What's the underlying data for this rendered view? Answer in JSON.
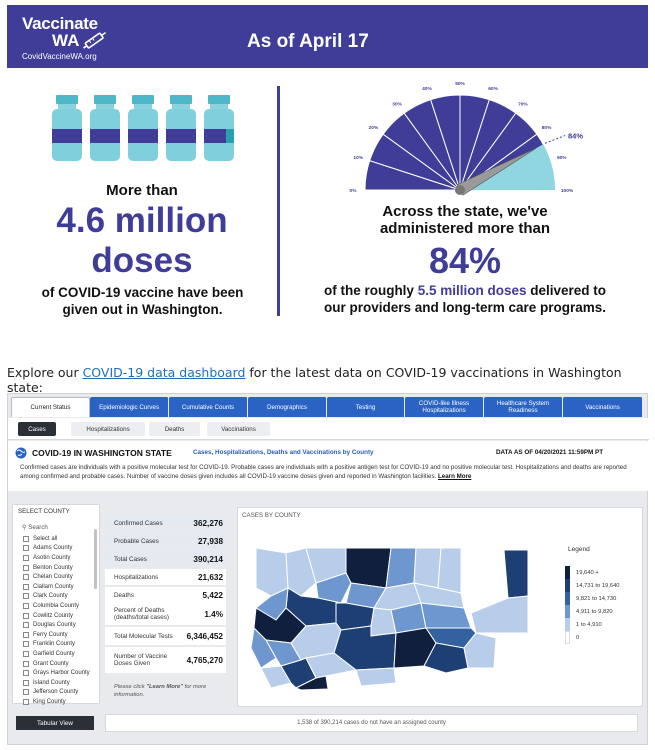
{
  "banner": {
    "logo_line1": "Vaccinate",
    "logo_line2": "WA",
    "logo_url_text": "CovidVaccineWA.org",
    "date_text": "As of April 17",
    "bg_color": "#3f3d97"
  },
  "doses": {
    "intro": "More than",
    "amount_line1": "4.6 million",
    "amount_line2": "doses",
    "caption_line1": "of COVID-19 vaccine have been",
    "caption_line2": "given out in Washington."
  },
  "gauge": {
    "ticks": [
      "0%",
      "10%",
      "20%",
      "30%",
      "40%",
      "50%",
      "60%",
      "70%",
      "80%",
      "90%",
      "100%"
    ],
    "marker_label": "84%",
    "value_percent": 84
  },
  "administered": {
    "line1": "Across the state, we've",
    "line2": "administered more than",
    "percent": "84%",
    "caption_pre": "of the roughly ",
    "caption_highlight": "5.5 million doses",
    "caption_post": " delivered to",
    "caption_line2": "our providers and long-term care programs."
  },
  "explore": {
    "prefix": "Explore our ",
    "link": "COVID-19 data dashboard",
    "suffix": " for the latest data on COVID-19 vaccinations in Washington state:"
  },
  "dashboard": {
    "tabs": [
      "Current Status",
      "Epidemiologic Curves",
      "Cumulative Counts",
      "Demographics",
      "Testing",
      "COVID-like Illness Hospitalizations",
      "Healthcare System Readiness",
      "Vaccinations"
    ],
    "subtabs": [
      "Cases",
      "Hospitalizations",
      "Deaths",
      "Vaccinations"
    ],
    "state_title": "COVID-19 IN WASHINGTON STATE",
    "state_subtitle": "Cases, Hospitalizations, Deaths and Vaccinations by County",
    "date_label": "DATA AS OF 04/20/2021 11:59PM PT",
    "description": "Confirmed cases are individuals with a positive molecular test for COVID-19. Probable cases are individuals with a positive antigen test for COVID-19 and no positive molecular test. Hospitalizations and deaths are reported among confirmed and probable cases. Number of vaccine doses given includes all COVID-19 vaccine doses given and reported in Washington facilities.",
    "learn_more": "Learn More",
    "county_title": "SELECT COUNTY",
    "search_placeholder": "Search",
    "counties": [
      "Select all",
      "Adams County",
      "Asotin County",
      "Benton County",
      "Chelan County",
      "Clallam County",
      "Clark County",
      "Columbia County",
      "Cowlitz County",
      "Douglas County",
      "Ferry County",
      "Franklin County",
      "Garfield County",
      "Grant County",
      "Grays Harbor County",
      "Island County",
      "Jefferson County",
      "King County"
    ],
    "stats": [
      {
        "label": "Confirmed Cases",
        "value": "362,276"
      },
      {
        "label": "Probable Cases",
        "value": "27,938"
      },
      {
        "label": "Total Cases",
        "value": "390,214"
      },
      {
        "label": "Hospitalizations",
        "value": "21,632"
      },
      {
        "label": "Deaths",
        "value": "5,422"
      },
      {
        "label": "Percent of Deaths (deaths/total cases)",
        "value": "1.4%"
      },
      {
        "label": "Total Molecular Tests",
        "value": "6,346,452"
      },
      {
        "label": "Number of Vaccine Doses Given",
        "value": "4,765,270"
      }
    ],
    "learn_note_pre": "Please click ",
    "learn_note_link": "\"Learn More\"",
    "learn_note_post": " for more information.",
    "map_title": "CASES BY COUNTY",
    "legend_title": "Legend",
    "legend": [
      {
        "label": "19,640 +",
        "color": "#0f1f3d"
      },
      {
        "label": "14,731 to 19,640",
        "color": "#1d3f73"
      },
      {
        "label": "9,821 to 14,730",
        "color": "#34619f"
      },
      {
        "label": "4,911 to 9,820",
        "color": "#6f97cf"
      },
      {
        "label": "1 to 4,910",
        "color": "#b8cdea"
      },
      {
        "label": "0",
        "color": "#ffffff"
      }
    ],
    "tabular_button": "Tabular View",
    "footnote": "1,538 of 390,214 cases do not have an assigned county"
  }
}
